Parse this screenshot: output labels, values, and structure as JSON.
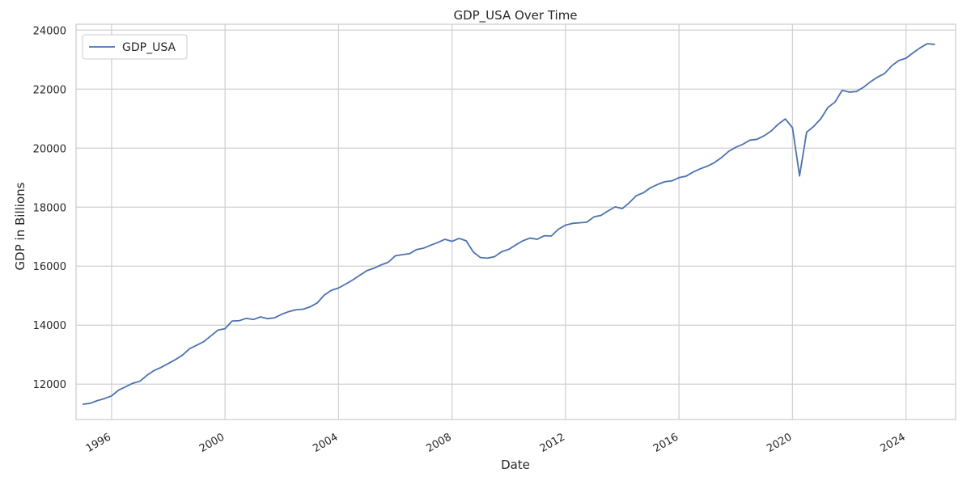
{
  "chart_data": {
    "type": "line",
    "title": "GDP_USA Over Time",
    "xlabel": "Date",
    "ylabel": "GDP in Billions",
    "legend_position": "top-left",
    "grid": true,
    "xlim": [
      "1994-10-01",
      "2025-10-01"
    ],
    "ylim": [
      10800,
      24200
    ],
    "x_ticks": [
      "1996",
      "2000",
      "2004",
      "2008",
      "2012",
      "2016",
      "2020",
      "2024"
    ],
    "y_ticks": [
      12000,
      14000,
      16000,
      18000,
      20000,
      22000,
      24000
    ],
    "colors": {
      "series": "#4c72b0",
      "grid": "#d0d0d0",
      "axes": "#cccccc",
      "text": "#262626"
    },
    "series": [
      {
        "name": "GDP_USA",
        "x": [
          "1995-01-01",
          "1995-04-01",
          "1995-07-01",
          "1995-10-01",
          "1996-01-01",
          "1996-04-01",
          "1996-07-01",
          "1996-10-01",
          "1997-01-01",
          "1997-04-01",
          "1997-07-01",
          "1997-10-01",
          "1998-01-01",
          "1998-04-01",
          "1998-07-01",
          "1998-10-01",
          "1999-01-01",
          "1999-04-01",
          "1999-07-01",
          "1999-10-01",
          "2000-01-01",
          "2000-04-01",
          "2000-07-01",
          "2000-10-01",
          "2001-01-01",
          "2001-04-01",
          "2001-07-01",
          "2001-10-01",
          "2002-01-01",
          "2002-04-01",
          "2002-07-01",
          "2002-10-01",
          "2003-01-01",
          "2003-04-01",
          "2003-07-01",
          "2003-10-01",
          "2004-01-01",
          "2004-04-01",
          "2004-07-01",
          "2004-10-01",
          "2005-01-01",
          "2005-04-01",
          "2005-07-01",
          "2005-10-01",
          "2006-01-01",
          "2006-04-01",
          "2006-07-01",
          "2006-10-01",
          "2007-01-01",
          "2007-04-01",
          "2007-07-01",
          "2007-10-01",
          "2008-01-01",
          "2008-04-01",
          "2008-07-01",
          "2008-10-01",
          "2009-01-01",
          "2009-04-01",
          "2009-07-01",
          "2009-10-01",
          "2010-01-01",
          "2010-04-01",
          "2010-07-01",
          "2010-10-01",
          "2011-01-01",
          "2011-04-01",
          "2011-07-01",
          "2011-10-01",
          "2012-01-01",
          "2012-04-01",
          "2012-07-01",
          "2012-10-01",
          "2013-01-01",
          "2013-04-01",
          "2013-07-01",
          "2013-10-01",
          "2014-01-01",
          "2014-04-01",
          "2014-07-01",
          "2014-10-01",
          "2015-01-01",
          "2015-04-01",
          "2015-07-01",
          "2015-10-01",
          "2016-01-01",
          "2016-04-01",
          "2016-07-01",
          "2016-10-01",
          "2017-01-01",
          "2017-04-01",
          "2017-07-01",
          "2017-10-01",
          "2018-01-01",
          "2018-04-01",
          "2018-07-01",
          "2018-10-01",
          "2019-01-01",
          "2019-04-01",
          "2019-07-01",
          "2019-10-01",
          "2020-01-01",
          "2020-04-01",
          "2020-07-01",
          "2020-10-01",
          "2021-01-01",
          "2021-04-01",
          "2021-07-01",
          "2021-10-01",
          "2022-01-01",
          "2022-04-01",
          "2022-07-01",
          "2022-10-01",
          "2023-01-01",
          "2023-04-01",
          "2023-07-01",
          "2023-10-01",
          "2024-01-01",
          "2024-04-01",
          "2024-07-01",
          "2024-10-01",
          "2025-01-01"
        ],
        "values": [
          11320,
          11350,
          11440,
          11510,
          11600,
          11800,
          11910,
          12030,
          12100,
          12300,
          12460,
          12570,
          12700,
          12830,
          12980,
          13200,
          13320,
          13440,
          13630,
          13830,
          13880,
          14140,
          14150,
          14230,
          14190,
          14280,
          14220,
          14250,
          14370,
          14460,
          14520,
          14540,
          14620,
          14750,
          15020,
          15180,
          15260,
          15390,
          15530,
          15690,
          15850,
          15930,
          16040,
          16130,
          16350,
          16390,
          16420,
          16560,
          16610,
          16710,
          16800,
          16910,
          16840,
          16940,
          16860,
          16480,
          16290,
          16270,
          16320,
          16490,
          16570,
          16720,
          16860,
          16950,
          16910,
          17030,
          17020,
          17250,
          17390,
          17450,
          17470,
          17490,
          17670,
          17720,
          17870,
          18010,
          17950,
          18150,
          18390,
          18490,
          18660,
          18770,
          18860,
          18890,
          19000,
          19050,
          19190,
          19300,
          19390,
          19510,
          19680,
          19890,
          20030,
          20130,
          20270,
          20300,
          20420,
          20580,
          20810,
          20990,
          20690,
          19060,
          20540,
          20740,
          21000,
          21380,
          21560,
          21960,
          21900,
          21920,
          22060,
          22250,
          22410,
          22530,
          22790,
          22970,
          23050,
          23230,
          23400,
          23540,
          23520
        ]
      }
    ]
  }
}
